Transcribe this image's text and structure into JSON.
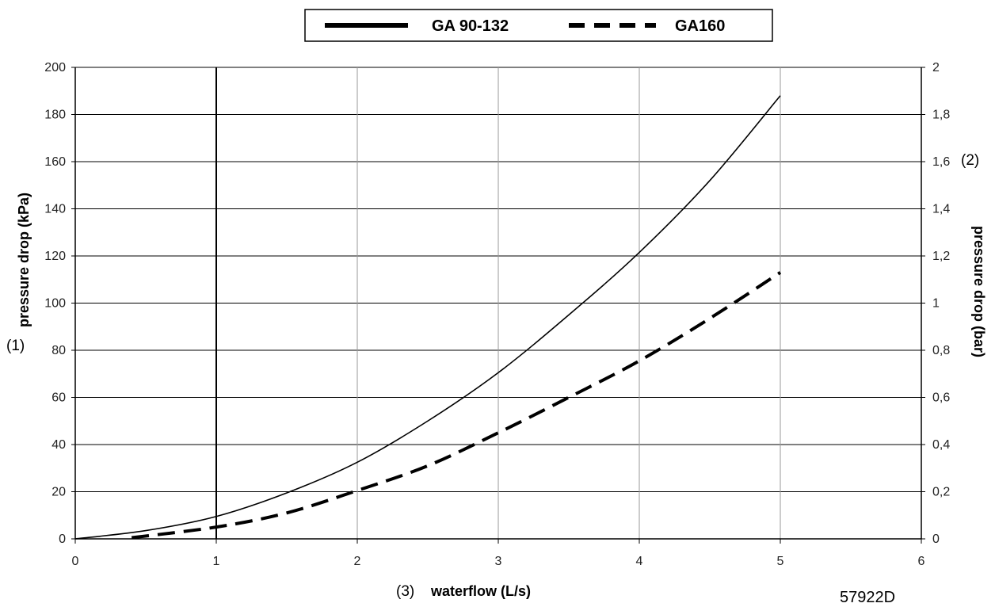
{
  "chart_data": {
    "type": "line",
    "code": "57922D",
    "xlabel": "waterflow (L/s)",
    "xlabel_ref": "(3)",
    "ylabel_left": "pressure drop (kPa)",
    "ylabel_left_ref": "(1)",
    "ylabel_right": "pressure drop (bar)",
    "ylabel_right_ref": "(2)",
    "xlim": [
      0,
      6
    ],
    "ylim_left": [
      0,
      200
    ],
    "ylim_right": [
      0,
      2
    ],
    "x_ticks": [
      "0",
      "1",
      "2",
      "3",
      "4",
      "5",
      "6"
    ],
    "y_ticks_left": [
      "0",
      "20",
      "40",
      "60",
      "80",
      "100",
      "120",
      "140",
      "160",
      "180",
      "200"
    ],
    "y_ticks_right": [
      "0",
      "0,2",
      "0,4",
      "0,6",
      "0,8",
      "1",
      "1,2",
      "1,4",
      "1,6",
      "1,8",
      "2"
    ],
    "grid": true,
    "legend_position": "top-center",
    "series": [
      {
        "name": "GA 90-132",
        "style": "solid",
        "color": "#000000",
        "x": [
          0,
          0.5,
          1.0,
          1.5,
          2.0,
          2.5,
          3.0,
          3.5,
          4.0,
          4.5,
          5.0
        ],
        "y": [
          0,
          3.5,
          9.5,
          19.5,
          32.5,
          50,
          70.5,
          95,
          121.5,
          152,
          188
        ]
      },
      {
        "name": "GA160",
        "style": "dashed",
        "color": "#000000",
        "x": [
          0.4,
          1.0,
          1.5,
          2.0,
          2.5,
          3.0,
          3.5,
          4.0,
          4.5,
          5.0
        ],
        "y": [
          0.5,
          5,
          11,
          20.5,
          31,
          45,
          60,
          75.5,
          93.5,
          113
        ]
      }
    ]
  }
}
